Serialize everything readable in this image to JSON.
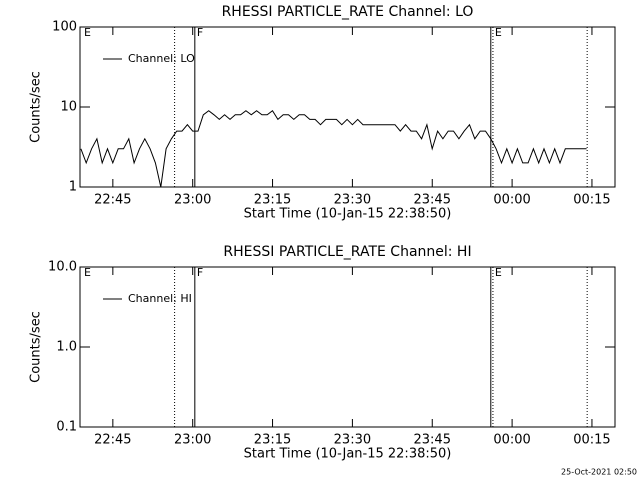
{
  "chart_data": [
    {
      "type": "line",
      "title": "RHESSI PARTICLE_RATE Channel: LO",
      "x_label": "Start Time (10-Jan-15 22:38:50)",
      "y_label": "Counts/sec",
      "log_y": true,
      "legend": "upper left",
      "xlim": [
        1358.83,
        1459.33
      ],
      "xticks": [
        {
          "value": 1365,
          "label": "22:45"
        },
        {
          "value": 1380,
          "label": "23:00"
        },
        {
          "value": 1395,
          "label": "23:15"
        },
        {
          "value": 1410,
          "label": "23:30"
        },
        {
          "value": 1425,
          "label": "23:45"
        },
        {
          "value": 1440,
          "label": "00:00"
        },
        {
          "value": 1455,
          "label": "00:15"
        }
      ],
      "ylim": [
        1,
        100
      ],
      "yticks": [
        1,
        10,
        100
      ],
      "markers": [
        {
          "x": 1359.2,
          "line": "none",
          "label": "E"
        },
        {
          "x": 1376.6,
          "line": "dotted"
        },
        {
          "x": 1380.4,
          "line": "solid",
          "label": "F"
        },
        {
          "x": 1436.0,
          "line": "solid"
        },
        {
          "x": 1436.4,
          "line": "dotted",
          "label": "E"
        },
        {
          "x": 1454.1,
          "line": "dotted"
        }
      ],
      "series": [
        {
          "name": "Channel: LO",
          "color": "#000000",
          "x": [
            1359,
            1360,
            1361,
            1362,
            1363,
            1364,
            1365,
            1366,
            1367,
            1368,
            1369,
            1370,
            1371,
            1372,
            1373,
            1374,
            1375,
            1376,
            1377,
            1378,
            1379,
            1380,
            1381,
            1382,
            1383,
            1384,
            1385,
            1386,
            1387,
            1388,
            1389,
            1390,
            1391,
            1392,
            1393,
            1394,
            1395,
            1396,
            1397,
            1398,
            1399,
            1400,
            1401,
            1402,
            1403,
            1404,
            1405,
            1406,
            1407,
            1408,
            1409,
            1410,
            1411,
            1412,
            1413,
            1414,
            1415,
            1416,
            1417,
            1418,
            1419,
            1420,
            1421,
            1422,
            1423,
            1424,
            1425,
            1426,
            1427,
            1428,
            1429,
            1430,
            1431,
            1432,
            1433,
            1434,
            1435,
            1436,
            1437,
            1438,
            1439,
            1440,
            1441,
            1442,
            1443,
            1444,
            1445,
            1446,
            1447,
            1448,
            1449,
            1450,
            1451,
            1452,
            1453,
            1454
          ],
          "values": [
            3,
            2,
            3,
            4,
            2,
            3,
            2,
            3,
            3,
            4,
            2,
            3,
            4,
            3,
            2,
            1,
            3,
            4,
            5,
            5,
            6,
            5,
            5,
            8,
            9,
            8,
            7,
            8,
            7,
            8,
            8,
            9,
            8,
            9,
            8,
            8,
            9,
            7,
            8,
            8,
            7,
            8,
            8,
            7,
            7,
            6,
            7,
            7,
            7,
            6,
            7,
            6,
            7,
            6,
            6,
            6,
            6,
            6,
            6,
            6,
            5,
            6,
            5,
            5,
            4,
            6,
            3,
            5,
            4,
            5,
            5,
            4,
            5,
            6,
            4,
            5,
            5,
            4,
            3,
            2,
            3,
            2,
            3,
            2,
            2,
            3,
            2,
            3,
            2,
            3,
            2,
            3,
            3,
            3,
            3,
            3
          ]
        }
      ]
    },
    {
      "type": "line",
      "title": "RHESSI PARTICLE_RATE Channel: HI",
      "x_label": "Start Time (10-Jan-15 22:38:50)",
      "y_label": "Counts/sec",
      "log_y": true,
      "legend": "upper left",
      "xlim": [
        1358.83,
        1459.33
      ],
      "xticks": [
        {
          "value": 1365,
          "label": "22:45"
        },
        {
          "value": 1380,
          "label": "23:00"
        },
        {
          "value": 1395,
          "label": "23:15"
        },
        {
          "value": 1410,
          "label": "23:30"
        },
        {
          "value": 1425,
          "label": "23:45"
        },
        {
          "value": 1440,
          "label": "00:00"
        },
        {
          "value": 1455,
          "label": "00:15"
        }
      ],
      "ylim": [
        0.1,
        10
      ],
      "yticks": [
        {
          "value": 0.1,
          "label": "0.1"
        },
        {
          "value": 1,
          "label": "1.0"
        },
        {
          "value": 10,
          "label": "10.0"
        }
      ],
      "markers": [
        {
          "x": 1359.2,
          "line": "none",
          "label": "E"
        },
        {
          "x": 1376.6,
          "line": "dotted"
        },
        {
          "x": 1380.4,
          "line": "solid",
          "label": "F"
        },
        {
          "x": 1436.0,
          "line": "solid"
        },
        {
          "x": 1436.4,
          "line": "dotted",
          "label": "E"
        },
        {
          "x": 1454.1,
          "line": "dotted"
        }
      ],
      "series": [
        {
          "name": "Channel: HI",
          "color": "#000000",
          "x": [],
          "values": []
        }
      ]
    }
  ],
  "footer": "25-Oct-2021 02:50"
}
